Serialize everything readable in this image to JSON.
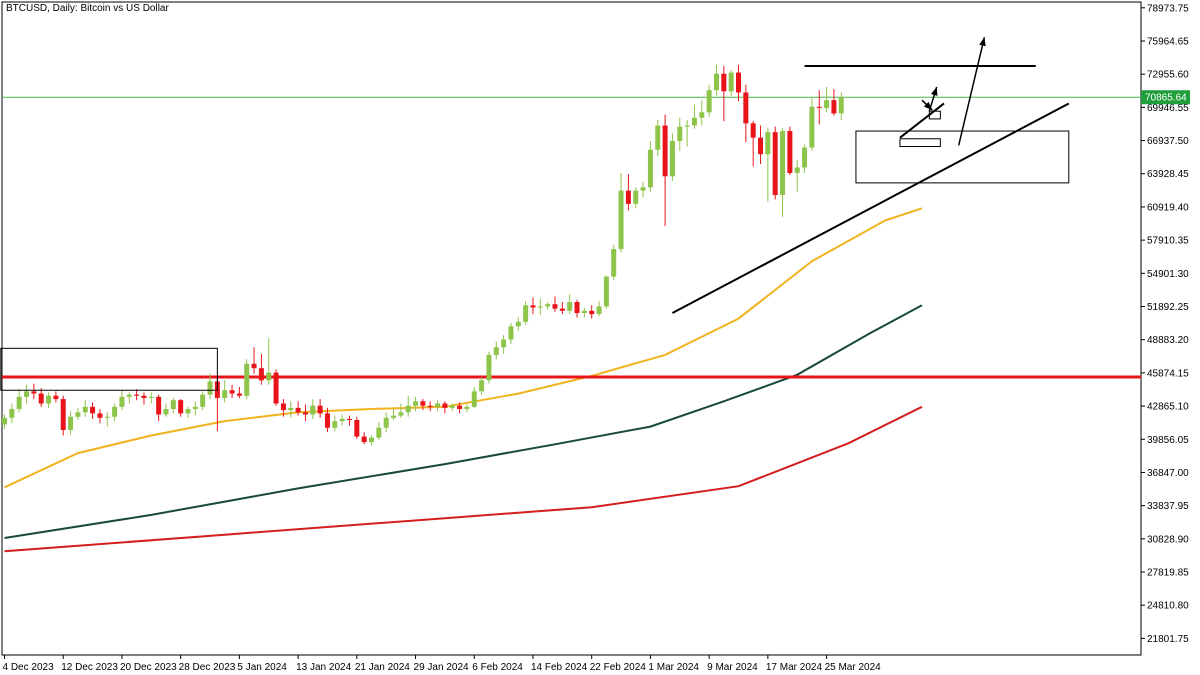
{
  "header": {
    "title": "BTCUSD, Daily:  Bitcoin vs US Dollar"
  },
  "colors": {
    "bull": "#8dc44a",
    "bear": "#e8141a",
    "ma_fast": "#f0b31e",
    "ma_mid": "#184a3c",
    "ma_slow": "#d41e1e",
    "support_line": "#e8141a",
    "price_line": "#4cb34c",
    "price_label_bg": "#1f9e3a",
    "axis": "#000000",
    "drawing": "#000000"
  },
  "chart_data": {
    "type": "candlestick",
    "symbol": "BTCUSD",
    "timeframe": "Daily",
    "ylim": [
      20296.0,
      79500.0
    ],
    "y_ticks": [
      "78973.75",
      "75964.65",
      "72955.60",
      "69946.55",
      "66937.50",
      "63928.45",
      "60919.40",
      "57910.35",
      "54901.30",
      "51892.25",
      "48883.20",
      "45874.15",
      "42865.10",
      "39856.05",
      "36847.00",
      "33837.95",
      "30828.90",
      "27819.85",
      "24810.80",
      "21801.75"
    ],
    "x_ticks": [
      "4 Dec 2023",
      "12 Dec 2023",
      "20 Dec 2023",
      "28 Dec 2023",
      "5 Jan 2024",
      "13 Jan 2024",
      "21 Jan 2024",
      "29 Jan 2024",
      "6 Feb 2024",
      "14 Feb 2024",
      "22 Feb 2024",
      "1 Mar 2024",
      "9 Mar 2024",
      "17 Mar 2024",
      "25 Mar 2024"
    ],
    "current_price": "70865.64",
    "support_level": 45500,
    "candles": [
      [
        41200,
        42100,
        40800,
        41800
      ],
      [
        41800,
        43100,
        41300,
        42600
      ],
      [
        42600,
        44400,
        42300,
        43700
      ],
      [
        43700,
        44800,
        43100,
        44200
      ],
      [
        44200,
        44900,
        43500,
        44000
      ],
      [
        44000,
        44500,
        42800,
        43100
      ],
      [
        43100,
        44100,
        42700,
        43800
      ],
      [
        43800,
        44200,
        43200,
        43500
      ],
      [
        43500,
        43800,
        40200,
        40700
      ],
      [
        40700,
        42400,
        40300,
        41900
      ],
      [
        41900,
        42700,
        41600,
        42300
      ],
      [
        42300,
        43400,
        41900,
        42800
      ],
      [
        42800,
        43200,
        41700,
        42200
      ],
      [
        42200,
        42600,
        41300,
        41800
      ],
      [
        41800,
        42300,
        41000,
        41900
      ],
      [
        41900,
        43100,
        41500,
        42800
      ],
      [
        42800,
        44300,
        42500,
        43700
      ],
      [
        43700,
        44100,
        43100,
        43900
      ],
      [
        43900,
        44400,
        43400,
        43800
      ],
      [
        43800,
        44100,
        43000,
        43600
      ],
      [
        43600,
        44100,
        43100,
        43700
      ],
      [
        43700,
        43900,
        41500,
        42100
      ],
      [
        42100,
        43100,
        41900,
        42600
      ],
      [
        42600,
        43600,
        42200,
        43400
      ],
      [
        43400,
        43500,
        41900,
        42200
      ],
      [
        42200,
        42800,
        41800,
        42600
      ],
      [
        42600,
        43300,
        42000,
        42800
      ],
      [
        42800,
        44200,
        42500,
        43900
      ],
      [
        43900,
        45800,
        43500,
        45100
      ],
      [
        45100,
        45500,
        40600,
        43600
      ],
      [
        43600,
        45200,
        43200,
        44300
      ],
      [
        44300,
        44800,
        43600,
        44000
      ],
      [
        44000,
        44600,
        43600,
        43800
      ],
      [
        43800,
        47100,
        43500,
        46700
      ],
      [
        46700,
        48200,
        45800,
        46300
      ],
      [
        46300,
        47600,
        44800,
        45200
      ],
      [
        45200,
        49000,
        44800,
        45900
      ],
      [
        45900,
        46200,
        42900,
        43100
      ],
      [
        43100,
        43500,
        41900,
        42500
      ],
      [
        42500,
        43300,
        41800,
        42700
      ],
      [
        42700,
        43300,
        42000,
        42300
      ],
      [
        42300,
        43000,
        41500,
        42100
      ],
      [
        42100,
        43500,
        41700,
        42900
      ],
      [
        42900,
        43500,
        41800,
        42200
      ],
      [
        42200,
        42700,
        40500,
        40900
      ],
      [
        40900,
        42000,
        40600,
        41500
      ],
      [
        41500,
        42100,
        41100,
        41700
      ],
      [
        41700,
        42000,
        41100,
        41600
      ],
      [
        41600,
        41900,
        39900,
        40100
      ],
      [
        40100,
        40500,
        39400,
        39600
      ],
      [
        39600,
        40200,
        39300,
        40000
      ],
      [
        40000,
        41400,
        39800,
        40900
      ],
      [
        40900,
        42300,
        40500,
        41800
      ],
      [
        41800,
        42600,
        41600,
        42000
      ],
      [
        42000,
        43100,
        41800,
        42300
      ],
      [
        42300,
        43800,
        41900,
        42900
      ],
      [
        42900,
        43700,
        42400,
        43300
      ],
      [
        43300,
        43500,
        42500,
        42900
      ],
      [
        42900,
        43300,
        42400,
        42800
      ],
      [
        42800,
        43400,
        42400,
        43100
      ],
      [
        43100,
        43300,
        42200,
        42700
      ],
      [
        42700,
        43100,
        42400,
        42900
      ],
      [
        42900,
        43200,
        42200,
        42600
      ],
      [
        42600,
        43000,
        42300,
        42800
      ],
      [
        42800,
        44600,
        42700,
        44200
      ],
      [
        44200,
        45500,
        43900,
        45200
      ],
      [
        45200,
        47800,
        44900,
        47500
      ],
      [
        47500,
        48700,
        47100,
        48200
      ],
      [
        48200,
        49300,
        47600,
        48900
      ],
      [
        48900,
        50400,
        48500,
        50100
      ],
      [
        50100,
        50900,
        49700,
        50500
      ],
      [
        50500,
        52400,
        50200,
        52000
      ],
      [
        52000,
        52700,
        51200,
        51800
      ],
      [
        51800,
        52600,
        51100,
        51900
      ],
      [
        51900,
        52300,
        51600,
        52100
      ],
      [
        52100,
        52800,
        51400,
        51700
      ],
      [
        51700,
        52300,
        51200,
        51500
      ],
      [
        51500,
        53000,
        51200,
        52300
      ],
      [
        52300,
        52500,
        50900,
        51300
      ],
      [
        51300,
        51800,
        50900,
        51500
      ],
      [
        51500,
        52000,
        50800,
        51200
      ],
      [
        51200,
        52400,
        51000,
        51900
      ],
      [
        51900,
        54700,
        51700,
        54600
      ],
      [
        54600,
        57500,
        54300,
        57100
      ],
      [
        57100,
        64000,
        56800,
        62400
      ],
      [
        62400,
        63900,
        60600,
        61200
      ],
      [
        61200,
        62700,
        60800,
        62400
      ],
      [
        62400,
        63200,
        61800,
        62700
      ],
      [
        62700,
        66900,
        62300,
        66100
      ],
      [
        66100,
        68800,
        65500,
        68300
      ],
      [
        68300,
        69300,
        59200,
        63700
      ],
      [
        63700,
        67600,
        63300,
        66900
      ],
      [
        66900,
        69000,
        66000,
        68200
      ],
      [
        68200,
        68800,
        66400,
        68300
      ],
      [
        68300,
        70200,
        68000,
        69000
      ],
      [
        69000,
        70600,
        68300,
        69500
      ],
      [
        69500,
        72000,
        69100,
        71500
      ],
      [
        71500,
        73800,
        71000,
        73000
      ],
      [
        73000,
        73700,
        68700,
        71400
      ],
      [
        71400,
        73300,
        71000,
        73100
      ],
      [
        73100,
        73800,
        70500,
        71300
      ],
      [
        71300,
        72000,
        66800,
        68500
      ],
      [
        68500,
        68700,
        64600,
        67200
      ],
      [
        67200,
        68300,
        64800,
        65700
      ],
      [
        65700,
        68100,
        61400,
        67700
      ],
      [
        67700,
        68200,
        61600,
        62000
      ],
      [
        62000,
        68100,
        60000,
        67800
      ],
      [
        67800,
        68200,
        63800,
        64000
      ],
      [
        64000,
        65200,
        62300,
        64500
      ],
      [
        64500,
        66600,
        64000,
        66300
      ],
      [
        66300,
        70900,
        66000,
        70000
      ],
      [
        70000,
        71500,
        68400,
        69900
      ],
      [
        69900,
        71800,
        69500,
        70600
      ],
      [
        70600,
        71600,
        69200,
        69400
      ],
      [
        69400,
        71300,
        68800,
        70865.64
      ]
    ],
    "moving_averages": [
      {
        "color_key": "ma_fast",
        "points": [
          [
            0,
            35500
          ],
          [
            10,
            38600
          ],
          [
            20,
            40200
          ],
          [
            30,
            41500
          ],
          [
            40,
            42300
          ],
          [
            50,
            42600
          ],
          [
            60,
            42800
          ],
          [
            70,
            44000
          ],
          [
            80,
            45600
          ],
          [
            90,
            47500
          ],
          [
            100,
            50800
          ],
          [
            110,
            56000
          ],
          [
            120,
            59700
          ],
          [
            125,
            60800
          ]
        ]
      },
      {
        "color_key": "ma_mid",
        "points": [
          [
            0,
            30900
          ],
          [
            20,
            33000
          ],
          [
            40,
            35400
          ],
          [
            60,
            37600
          ],
          [
            75,
            39400
          ],
          [
            88,
            41000
          ],
          [
            98,
            43300
          ],
          [
            108,
            45700
          ],
          [
            118,
            49500
          ],
          [
            125,
            52000
          ]
        ]
      },
      {
        "color_key": "ma_slow",
        "points": [
          [
            0,
            29700
          ],
          [
            30,
            31200
          ],
          [
            60,
            32700
          ],
          [
            80,
            33700
          ],
          [
            100,
            35600
          ],
          [
            115,
            39500
          ],
          [
            125,
            42800
          ]
        ]
      }
    ],
    "x_tick_index": [
      0,
      8,
      16,
      24,
      32,
      40,
      48,
      56,
      64,
      72,
      80,
      88,
      96,
      104,
      112
    ]
  }
}
